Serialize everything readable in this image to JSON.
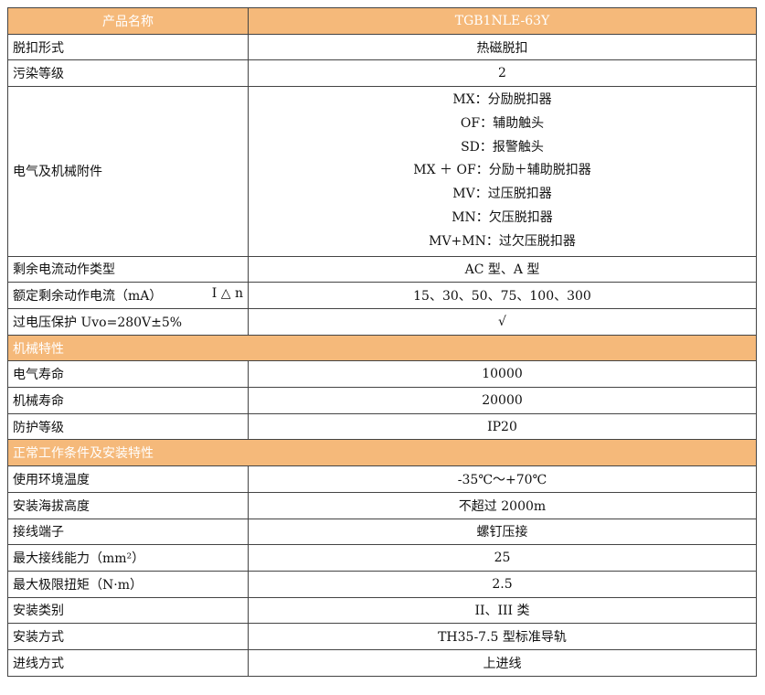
{
  "header": {
    "col1": "产品名称",
    "col2": "TGB1NLE-63Y"
  },
  "rows1": [
    {
      "k": "脱扣形式",
      "v": "热磁脱扣"
    },
    {
      "k": "污染等级",
      "v": "2"
    }
  ],
  "accessories": {
    "k": "电气及机械附件",
    "lines": [
      "MX：分励脱扣器",
      "OF：辅助触头",
      "SD：报警触头",
      "MX ＋ OF：分励＋辅助脱扣器",
      "MV：过压脱扣器",
      "MN：欠压脱扣器",
      "MV+MN：过欠压脱扣器"
    ]
  },
  "rows2": [
    {
      "k": "剩余电流动作类型",
      "v": "AC 型、A 型"
    },
    {
      "k": "额定剩余动作电流（mA）",
      "k2": "I △ n",
      "v": "15、30、50、75、100、300"
    },
    {
      "k": "过电压保护 Uvo=280V±5%",
      "v": "√"
    }
  ],
  "section1": "机械特性",
  "rows3": [
    {
      "k": "电气寿命",
      "v": "10000"
    },
    {
      "k": "机械寿命",
      "v": "20000"
    },
    {
      "k": "防护等级",
      "v": "IP20"
    }
  ],
  "section2": "正常工作条件及安装特性",
  "rows4": [
    {
      "k": "使用环境温度",
      "v": "-35℃～+70℃"
    },
    {
      "k": "安装海拔高度",
      "v": "不超过 2000m"
    },
    {
      "k": "接线端子",
      "v": "螺钉压接"
    },
    {
      "k": "最大接线能力（mm²）",
      "v": "25"
    },
    {
      "k": "最大极限扭矩（N·m）",
      "v": "2.5"
    },
    {
      "k": "安装类别",
      "v": "II、III 类"
    },
    {
      "k": "安装方式",
      "v": "TH35-7.5 型标准导轨"
    },
    {
      "k": "进线方式",
      "v": "上进线"
    }
  ],
  "colors": {
    "header_bg": "#f5b97a",
    "header_text": "#ffffff",
    "border": "#444444"
  }
}
